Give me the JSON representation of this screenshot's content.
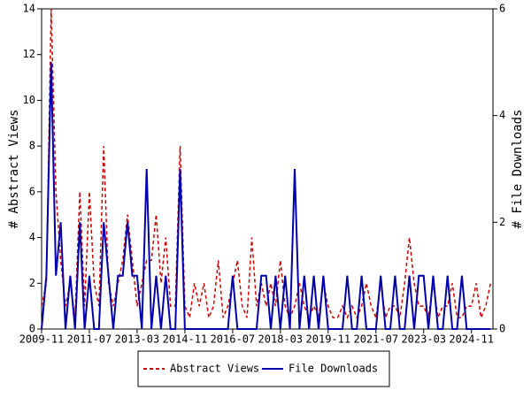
{
  "chart_data": {
    "type": "line",
    "y_label": "# Abstract Views",
    "y2_label": "# File Downloads",
    "x": [
      "2009-11",
      "2010-01",
      "2010-03",
      "2010-05",
      "2010-07",
      "2010-09",
      "2010-11",
      "2011-01",
      "2011-03",
      "2011-05",
      "2011-07",
      "2011-09",
      "2011-11",
      "2012-01",
      "2012-03",
      "2012-05",
      "2012-07",
      "2012-09",
      "2012-11",
      "2013-01",
      "2013-03",
      "2013-05",
      "2013-07",
      "2013-09",
      "2013-11",
      "2014-01",
      "2014-03",
      "2014-05",
      "2014-07",
      "2014-09",
      "2014-11",
      "2015-01",
      "2015-03",
      "2015-05",
      "2015-07",
      "2015-09",
      "2015-11",
      "2016-01",
      "2016-03",
      "2016-05",
      "2016-07",
      "2016-09",
      "2016-11",
      "2017-01",
      "2017-03",
      "2017-05",
      "2017-07",
      "2017-09",
      "2017-11",
      "2018-01",
      "2018-03",
      "2018-05",
      "2018-07",
      "2018-09",
      "2018-11",
      "2019-01",
      "2019-03",
      "2019-05",
      "2019-07",
      "2019-09",
      "2019-11",
      "2020-01",
      "2020-03",
      "2020-05",
      "2020-07",
      "2020-09",
      "2020-11",
      "2021-01",
      "2021-03",
      "2021-05",
      "2021-07",
      "2021-09",
      "2021-11",
      "2022-01",
      "2022-03",
      "2022-05",
      "2022-07",
      "2022-09",
      "2022-11",
      "2023-01",
      "2023-03",
      "2023-05",
      "2023-07",
      "2023-09",
      "2023-11",
      "2024-01",
      "2024-03",
      "2024-05",
      "2024-07",
      "2024-09",
      "2024-11",
      "2025-01",
      "2025-03",
      "2025-05",
      "2025-07"
    ],
    "series": [
      {
        "name": "Abstract Views",
        "color": "#cc0000",
        "dash": true,
        "axis": "y",
        "values": [
          1,
          2,
          14,
          6,
          3,
          1,
          2,
          0.5,
          6,
          1,
          6,
          2,
          1,
          8,
          2,
          1,
          2,
          3,
          5,
          3,
          1,
          2,
          3,
          3,
          5,
          2,
          4,
          1,
          1,
          8,
          1,
          0.5,
          2,
          1,
          2,
          0.5,
          1,
          3,
          0.5,
          1,
          2,
          3,
          1,
          0.5,
          4,
          1,
          2,
          1,
          2,
          1,
          3,
          1,
          0.5,
          1,
          2,
          1,
          0.5,
          1,
          0.5,
          2,
          1,
          0.5,
          0.5,
          1,
          0.5,
          1,
          0.5,
          1,
          2,
          1,
          0.5,
          2,
          0.5,
          1,
          1,
          0.5,
          2,
          4,
          2,
          1,
          1,
          0.5,
          2,
          0.5,
          1,
          1,
          2,
          0.5,
          0.5,
          1,
          1,
          2,
          0.5,
          1,
          2
        ]
      },
      {
        "name": "File Downloads",
        "color": "#0000aa",
        "dash": false,
        "axis": "y2",
        "values": [
          0,
          1,
          5,
          1,
          2,
          0,
          1,
          0,
          2,
          0,
          1,
          0,
          0,
          2,
          1,
          0,
          1,
          1,
          2,
          1,
          1,
          0,
          3,
          0,
          1,
          0,
          1,
          0,
          0,
          3,
          0,
          0,
          0,
          0,
          0,
          0,
          0,
          0,
          0,
          0,
          1,
          0,
          0,
          0,
          0,
          0,
          1,
          1,
          0,
          1,
          0,
          1,
          0,
          3,
          0,
          1,
          0,
          1,
          0,
          1,
          0,
          0,
          0,
          0,
          1,
          0,
          0,
          1,
          0,
          0,
          0,
          1,
          0,
          0,
          1,
          0,
          0,
          1,
          0,
          1,
          1,
          0,
          1,
          0,
          0,
          1,
          0,
          0,
          1,
          0,
          0,
          0,
          0,
          0,
          0
        ]
      }
    ],
    "xlim": [
      "2009-11",
      "2025-08"
    ],
    "xticks": [
      "2009-11",
      "2011-07",
      "2013-03",
      "2014-11",
      "2016-07",
      "2018-03",
      "2019-11",
      "2021-07",
      "2023-03",
      "2024-11"
    ],
    "ylim": [
      0,
      14
    ],
    "yticks": [
      0,
      2,
      4,
      6,
      8,
      10,
      12,
      14
    ],
    "y2lim": [
      0,
      6
    ],
    "y2ticks": [
      0,
      2,
      4,
      6
    ],
    "legend": "bottom"
  }
}
